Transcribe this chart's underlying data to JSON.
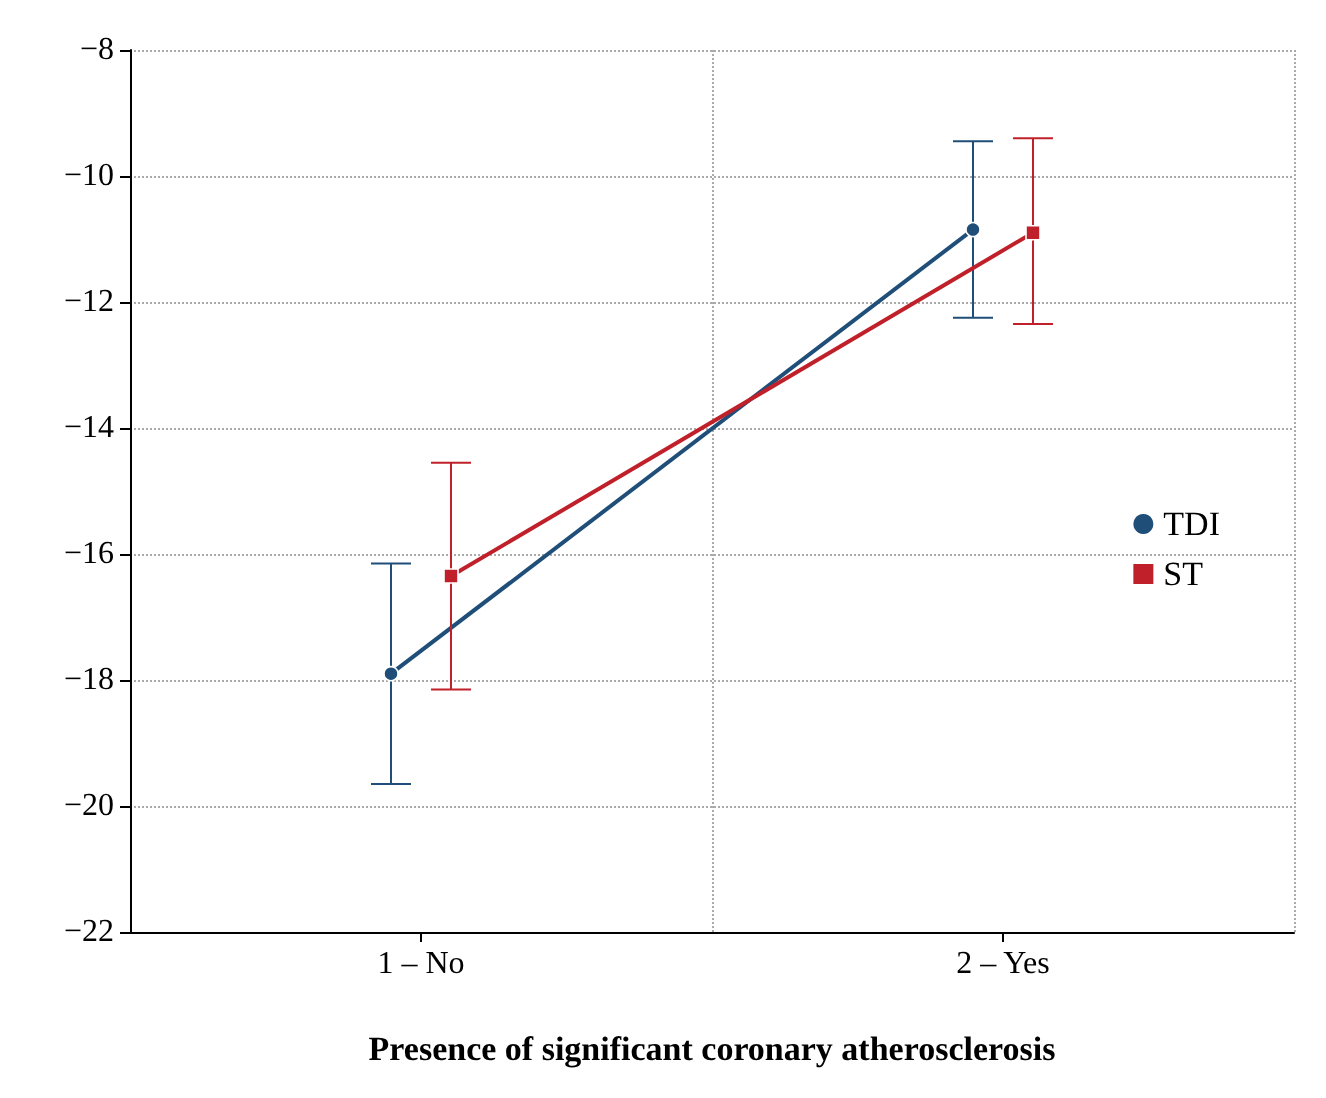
{
  "chart_data": {
    "type": "line",
    "xlabel": "Presence of significant coronary atherosclerosis",
    "categories": [
      "1 – No",
      "2 – Yes"
    ],
    "series": [
      {
        "name": "TDI",
        "color": "#1f4e79",
        "marker": "circle",
        "values": [
          -17.9,
          -10.85
        ],
        "errors": [
          [
            -19.65,
            -16.15
          ],
          [
            -12.25,
            -9.45
          ]
        ]
      },
      {
        "name": "ST",
        "color": "#c0202a",
        "marker": "square",
        "values": [
          -16.35,
          -10.9
        ],
        "errors": [
          [
            -18.15,
            -14.55
          ],
          [
            -12.35,
            -9.4
          ]
        ]
      }
    ],
    "ylim": [
      -22,
      -8
    ],
    "yticks": [
      -22,
      -20,
      -18,
      -16,
      -14,
      -12,
      -10,
      -8
    ],
    "grid": true,
    "legend": "right"
  }
}
